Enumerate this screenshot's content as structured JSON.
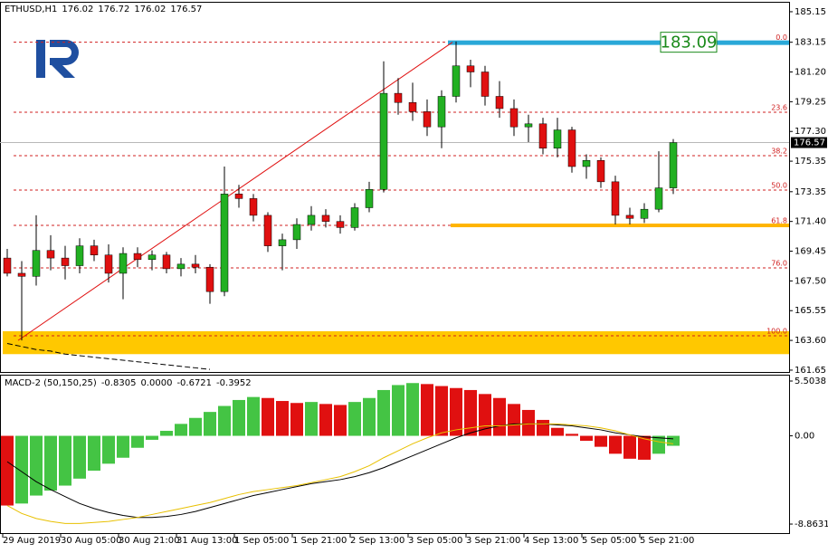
{
  "chart_data": [
    {
      "type": "candlestick",
      "symbol": "ETHUSD,H1",
      "header_values": [
        "176.02",
        "176.72",
        "176.02",
        "176.57"
      ],
      "up_color": "#22b022",
      "down_color": "#e01010",
      "open": [
        169.0,
        168.0,
        167.8,
        169.5,
        169.0,
        168.5,
        169.8,
        169.2,
        168.0,
        169.3,
        168.9,
        169.2,
        168.3,
        168.6,
        168.4,
        166.8,
        173.2,
        172.9,
        171.8,
        169.8,
        170.2,
        171.2,
        171.8,
        171.4,
        171.0,
        172.3,
        173.5,
        179.8,
        179.2,
        178.6,
        177.6,
        179.6,
        181.6,
        181.2,
        179.6,
        178.8,
        177.6,
        177.8,
        176.2,
        177.4,
        175.0,
        175.4,
        174.0,
        171.8,
        171.6,
        172.2,
        173.6
      ],
      "high": [
        169.6,
        168.8,
        171.8,
        170.5,
        169.8,
        170.3,
        170.2,
        169.9,
        169.7,
        169.7,
        169.5,
        169.4,
        169.0,
        169.2,
        168.6,
        175.0,
        173.8,
        173.2,
        172.0,
        170.6,
        171.6,
        172.4,
        172.2,
        171.8,
        172.6,
        174.0,
        181.9,
        180.8,
        180.5,
        179.4,
        180.0,
        183.2,
        182.0,
        181.6,
        180.6,
        179.4,
        178.4,
        178.2,
        178.2,
        177.6,
        175.8,
        175.6,
        174.4,
        172.3,
        172.6,
        176.0,
        176.8
      ],
      "low": [
        167.8,
        163.6,
        167.2,
        168.2,
        167.6,
        168.0,
        168.8,
        167.4,
        166.3,
        168.4,
        168.2,
        168.0,
        167.8,
        168.0,
        166.0,
        166.5,
        172.3,
        171.4,
        169.4,
        168.2,
        169.6,
        170.8,
        171.0,
        170.6,
        170.8,
        172.0,
        173.3,
        178.4,
        178.0,
        177.0,
        176.2,
        179.2,
        180.2,
        179.0,
        178.2,
        177.0,
        176.6,
        175.8,
        175.6,
        174.6,
        174.2,
        173.6,
        171.2,
        171.2,
        171.3,
        172.0,
        173.2
      ],
      "close": [
        168.0,
        167.8,
        169.5,
        169.0,
        168.5,
        169.8,
        169.2,
        168.0,
        169.3,
        168.9,
        169.2,
        168.3,
        168.6,
        168.4,
        166.8,
        173.2,
        172.9,
        171.8,
        169.8,
        170.2,
        171.2,
        171.8,
        171.4,
        171.0,
        172.3,
        173.5,
        179.8,
        179.2,
        178.6,
        177.6,
        179.6,
        181.6,
        181.2,
        179.6,
        178.8,
        177.6,
        177.8,
        176.2,
        177.4,
        175.0,
        175.4,
        174.0,
        171.8,
        171.6,
        172.2,
        173.6,
        176.57
      ],
      "dashed_line": [
        163.4,
        163.2,
        163.0,
        162.9,
        162.7,
        162.6,
        162.5,
        162.4,
        162.3,
        162.2,
        162.1,
        162.0,
        161.9,
        161.8,
        161.7
      ],
      "ylim": [
        161.47,
        185.8
      ],
      "yticks": [
        {
          "value": 185.15,
          "label": "185.15"
        },
        {
          "value": 183.15,
          "label": "183.15"
        },
        {
          "value": 181.2,
          "label": "181.20"
        },
        {
          "value": 179.25,
          "label": "179.25"
        },
        {
          "value": 177.3,
          "label": "177.30"
        },
        {
          "value": 175.35,
          "label": "175.35"
        },
        {
          "value": 173.35,
          "label": "173.35"
        },
        {
          "value": 171.4,
          "label": "171.40"
        },
        {
          "value": 169.45,
          "label": "169.45"
        },
        {
          "value": 167.5,
          "label": "167.50"
        },
        {
          "value": 165.55,
          "label": "165.55"
        },
        {
          "value": 163.6,
          "label": "163.60"
        },
        {
          "value": 161.65,
          "label": "161.65"
        }
      ],
      "fibonacci": [
        {
          "label": "0.0",
          "value": 183.15
        },
        {
          "label": "23.6",
          "value": 178.56
        },
        {
          "label": "38.2",
          "value": 175.71
        },
        {
          "label": "50.0",
          "value": 173.46
        },
        {
          "label": "61.8",
          "value": 171.14
        },
        {
          "label": "76.0",
          "value": 168.35
        },
        {
          "label": "100.0",
          "value": 163.9
        }
      ],
      "trendline": [
        163.6,
        183.15
      ],
      "support_zone": [
        162.7,
        164.2
      ],
      "resistance_line": 183.15,
      "target_line": 171.14,
      "annotation": "183.09",
      "current_price": {
        "value": 176.57,
        "label": "176.57"
      },
      "x_labels": [
        "29 Aug 2019",
        "30 Aug 05:00",
        "30 Aug 21:00",
        "31 Aug 13:00",
        "1 Sep 05:00",
        "1 Sep 21:00",
        "2 Sep 13:00",
        "3 Sep 05:00",
        "3 Sep 21:00",
        "4 Sep 13:00",
        "5 Sep 05:00",
        "5 Sep 21:00"
      ]
    },
    {
      "type": "macd",
      "name": "MACD-2 (50,150,25)",
      "header_values": [
        "-0.8305",
        "0.0000",
        "-0.6721",
        "-0.3952"
      ],
      "up_color": "#44c444",
      "down_color": "#e01010",
      "histogram": [
        -7.0,
        -6.8,
        -6.0,
        -5.5,
        -5.0,
        -4.3,
        -3.5,
        -2.8,
        -2.2,
        -1.2,
        -0.4,
        0.5,
        1.2,
        1.8,
        2.4,
        3.0,
        3.6,
        3.9,
        3.8,
        3.5,
        3.3,
        3.4,
        3.2,
        3.1,
        3.4,
        3.8,
        4.6,
        5.1,
        5.3,
        5.2,
        5.0,
        4.8,
        4.6,
        4.2,
        3.8,
        3.2,
        2.6,
        1.6,
        0.8,
        0.2,
        -0.5,
        -1.1,
        -1.8,
        -2.3,
        -2.4,
        -1.8,
        -1.0
      ],
      "series": [
        {
          "color": "#000000",
          "values": [
            -2.6,
            -3.6,
            -4.6,
            -5.4,
            -6.1,
            -6.8,
            -7.3,
            -7.7,
            -8.0,
            -8.2,
            -8.2,
            -8.1,
            -7.9,
            -7.6,
            -7.2,
            -6.8,
            -6.4,
            -6.0,
            -5.7,
            -5.4,
            -5.1,
            -4.8,
            -4.6,
            -4.4,
            -4.1,
            -3.7,
            -3.2,
            -2.6,
            -2.0,
            -1.4,
            -0.8,
            -0.2,
            0.3,
            0.7,
            1.0,
            1.2,
            1.2,
            1.2,
            1.1,
            1.0,
            0.8,
            0.6,
            0.3,
            0.1,
            -0.1,
            -0.2,
            -0.3
          ]
        },
        {
          "color": "#e8c000",
          "values": [
            -7.0,
            -7.8,
            -8.3,
            -8.6,
            -8.8,
            -8.8,
            -8.7,
            -8.6,
            -8.4,
            -8.2,
            -7.9,
            -7.6,
            -7.3,
            -7.0,
            -6.7,
            -6.3,
            -5.9,
            -5.6,
            -5.4,
            -5.2,
            -5.0,
            -4.7,
            -4.4,
            -4.1,
            -3.6,
            -3.0,
            -2.2,
            -1.5,
            -0.8,
            -0.2,
            0.3,
            0.6,
            0.8,
            1.0,
            1.0,
            1.1,
            1.2,
            1.2,
            1.2,
            1.1,
            1.0,
            0.8,
            0.5,
            0.1,
            -0.3,
            -0.6,
            -0.8
          ]
        }
      ],
      "ylim": [
        -9.86,
        6.14
      ],
      "yticks": [
        {
          "value": 5.5038,
          "label": "5.5038"
        },
        {
          "value": 0,
          "label": "0.00"
        },
        {
          "value": -8.8631,
          "label": "-8.8631"
        }
      ]
    }
  ]
}
